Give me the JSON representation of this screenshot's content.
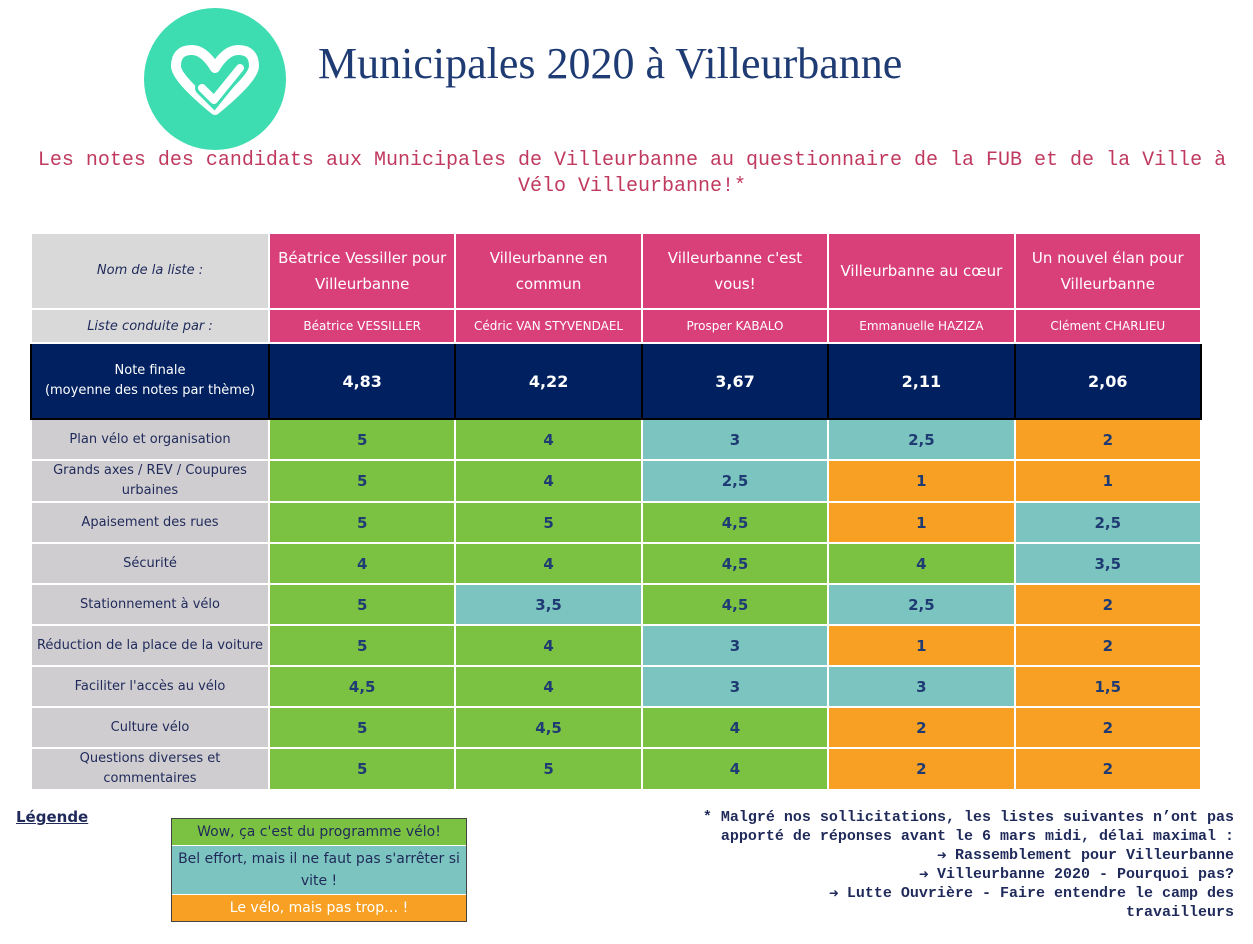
{
  "header": {
    "title": "Municipales 2020 à Villeurbanne",
    "subtitle": "Les notes des candidats aux Municipales de Villeurbanne au questionnaire de la FUB et de la Ville à Vélo Villeurbanne!*",
    "logo_icon": "check-heart-logo",
    "logo_color": "#3ddcb1"
  },
  "table": {
    "list_header": "Nom de la liste :",
    "lead_header": "Liste conduite par :",
    "final_header_line1": "Note finale",
    "final_header_line2": "(moyenne des notes par thème)",
    "candidates": [
      {
        "list": "Béatrice Vessiller pour Villeurbanne",
        "lead": "Béatrice VESSILLER",
        "final": "4,83"
      },
      {
        "list": "Villeurbanne en commun",
        "lead": "Cédric VAN STYVENDAEL",
        "final": "4,22"
      },
      {
        "list": "Villeurbanne c'est vous!",
        "lead": "Prosper KABALO",
        "final": "3,67"
      },
      {
        "list": "Villeurbanne au cœur",
        "lead": "Emmanuelle HAZIZA",
        "final": "2,11"
      },
      {
        "list": "Un nouvel élan pour Villeurbanne",
        "lead": "Clément CHARLIEU",
        "final": "2,06"
      }
    ],
    "themes": [
      {
        "label": "Plan vélo et organisation",
        "scores": [
          "5",
          "4",
          "3",
          "2,5",
          "2"
        ],
        "levels": [
          "green",
          "green",
          "teal",
          "teal",
          "orange"
        ]
      },
      {
        "label": "Grands axes / REV / Coupures urbaines",
        "scores": [
          "5",
          "4",
          "2,5",
          "1",
          "1"
        ],
        "levels": [
          "green",
          "green",
          "teal",
          "orange",
          "orange"
        ]
      },
      {
        "label": "Apaisement des rues",
        "scores": [
          "5",
          "5",
          "4,5",
          "1",
          "2,5"
        ],
        "levels": [
          "green",
          "green",
          "green",
          "orange",
          "teal"
        ]
      },
      {
        "label": "Sécurité",
        "scores": [
          "4",
          "4",
          "4,5",
          "4",
          "3,5"
        ],
        "levels": [
          "green",
          "green",
          "green",
          "green",
          "teal"
        ]
      },
      {
        "label": "Stationnement à vélo",
        "scores": [
          "5",
          "3,5",
          "4,5",
          "2,5",
          "2"
        ],
        "levels": [
          "green",
          "teal",
          "green",
          "teal",
          "orange"
        ]
      },
      {
        "label": "Réduction de la place de la voiture",
        "scores": [
          "5",
          "4",
          "3",
          "1",
          "2"
        ],
        "levels": [
          "green",
          "green",
          "teal",
          "orange",
          "orange"
        ]
      },
      {
        "label": "Faciliter l'accès au vélo",
        "scores": [
          "4,5",
          "4",
          "3",
          "3",
          "1,5"
        ],
        "levels": [
          "green",
          "green",
          "teal",
          "teal",
          "orange"
        ]
      },
      {
        "label": "Culture vélo",
        "scores": [
          "5",
          "4,5",
          "4",
          "2",
          "2"
        ],
        "levels": [
          "green",
          "green",
          "green",
          "orange",
          "orange"
        ]
      },
      {
        "label": "Questions diverses et commentaires",
        "scores": [
          "5",
          "5",
          "4",
          "2",
          "2"
        ],
        "levels": [
          "green",
          "green",
          "green",
          "orange",
          "orange"
        ]
      }
    ]
  },
  "legend": {
    "title": "Légende",
    "items": [
      {
        "label": "Wow, ça c'est du programme vélo!",
        "level": "green"
      },
      {
        "label": "Bel effort, mais il ne faut pas s'arrêter si vite !",
        "level": "teal"
      },
      {
        "label": "Le vélo, mais pas trop… !",
        "level": "orange"
      }
    ]
  },
  "footnote": {
    "intro_line1": "* Malgré nos sollicitations, les listes suivantes n’ont pas",
    "intro_line2": "apporté de réponses avant le 6 mars midi, délai maximal :",
    "missing": [
      "Rassemblement pour Villeurbanne",
      "Villeurbanne 2020 - Pourquoi pas?",
      "Lutte Ouvrière - Faire entendre le camp des",
      "travailleurs"
    ],
    "arrow_icon": "arrow-right-icon"
  },
  "colors": {
    "green": "#7cc242",
    "teal": "#7cc4bf",
    "orange": "#f7a024",
    "pink": "#d9407a",
    "navy": "#002060"
  }
}
